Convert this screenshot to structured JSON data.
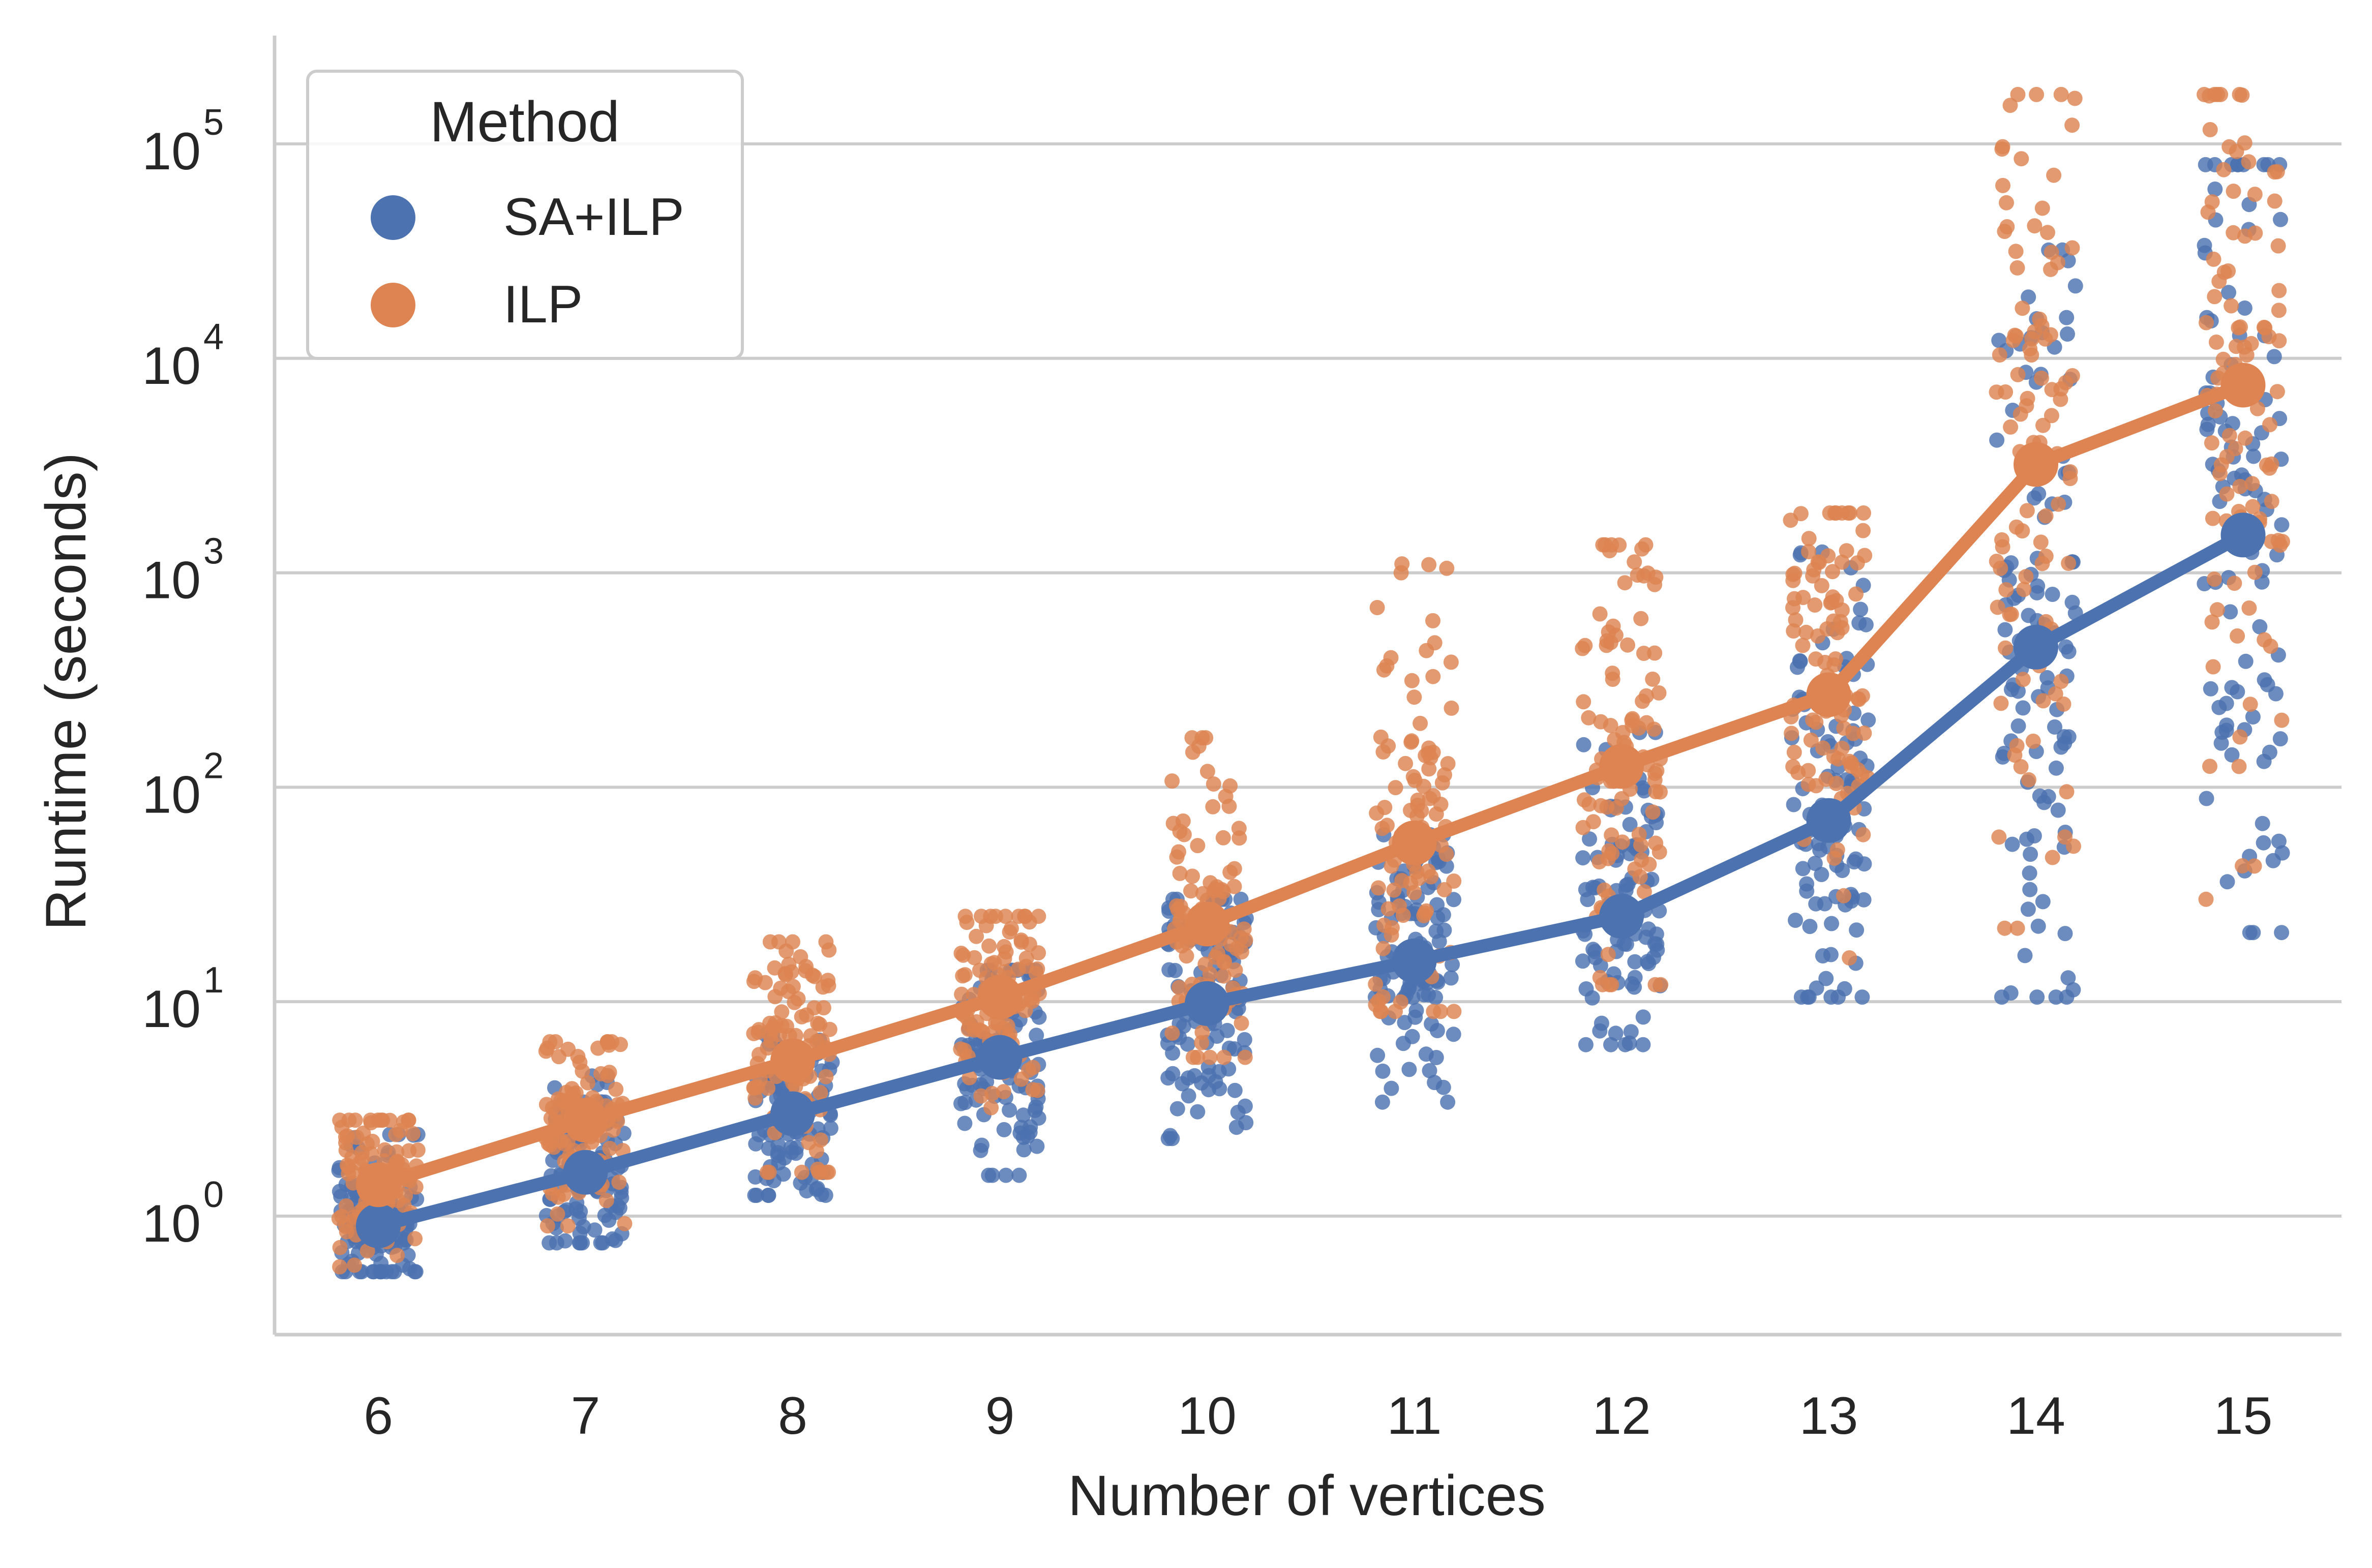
{
  "chart_data": {
    "type": "line",
    "xlabel": "Number of vertices",
    "ylabel": "Runtime (seconds)",
    "yscale": "log",
    "ylim": [
      0.28,
      320000
    ],
    "categories": [
      "6",
      "7",
      "8",
      "9",
      "10",
      "11",
      "12",
      "13",
      "14",
      "15"
    ],
    "yticks": [
      {
        "value": 1,
        "base": "10",
        "exp": "0"
      },
      {
        "value": 10,
        "base": "10",
        "exp": "1"
      },
      {
        "value": 100,
        "base": "10",
        "exp": "2"
      },
      {
        "value": 1000,
        "base": "10",
        "exp": "3"
      },
      {
        "value": 10000,
        "base": "10",
        "exp": "4"
      },
      {
        "value": 100000,
        "base": "10",
        "exp": "5"
      }
    ],
    "grid": "horizontal",
    "legend": {
      "title": "Method",
      "position": "top-left"
    },
    "series": [
      {
        "name": "SA+ILP",
        "color": "#4c72b0",
        "mean_values": [
          0.9,
          1.6,
          3.0,
          5.5,
          9.8,
          15.5,
          25,
          70,
          450,
          1500
        ],
        "spread_ranges": [
          [
            0.55,
            2.4
          ],
          [
            0.75,
            4.5
          ],
          [
            1.25,
            7.0
          ],
          [
            1.55,
            14
          ],
          [
            2.3,
            30
          ],
          [
            3.4,
            60
          ],
          [
            6.3,
            180
          ],
          [
            10.5,
            1250
          ],
          [
            10.5,
            32000
          ],
          [
            21,
            80000
          ]
        ]
      },
      {
        "name": "ILP",
        "color": "#dd8452",
        "mean_values": [
          1.4,
          2.8,
          5.3,
          10.5,
          23,
          55,
          125,
          270,
          3200,
          7500
        ],
        "spread_ranges": [
          [
            0.58,
            2.8
          ],
          [
            0.9,
            6.5
          ],
          [
            1.6,
            19
          ],
          [
            3.2,
            25
          ],
          [
            5.5,
            170
          ],
          [
            9,
            1100
          ],
          [
            12,
            1350
          ],
          [
            16,
            1900
          ],
          [
            22,
            170000
          ],
          [
            30,
            170000
          ]
        ]
      }
    ]
  }
}
